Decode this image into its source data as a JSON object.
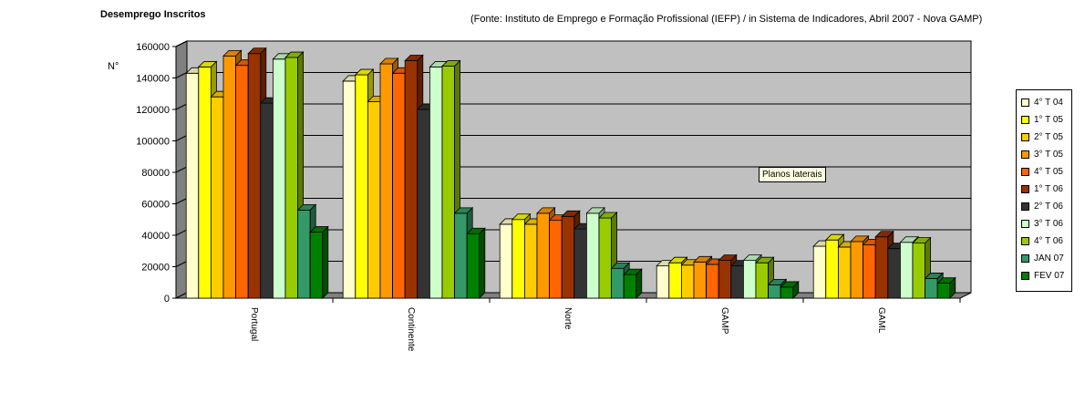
{
  "header": {
    "title": "Desemprego Inscritos",
    "source": "(Fonte: Instituto de Emprego e Formação Profissional (IEFP) / in Sistema de Indicadores, Abril 2007 - Nova GAMP)"
  },
  "tooltip": "Planos laterais",
  "colors": {
    "back_wall": "#c0c0c0",
    "floor": "#808080",
    "grid": "#000000"
  },
  "chart_data": {
    "type": "bar",
    "title": "Desemprego Inscritos",
    "ylabel": "N°",
    "xlabel": "",
    "ylim": [
      0,
      160000
    ],
    "yticks": [
      0,
      20000,
      40000,
      60000,
      80000,
      100000,
      120000,
      140000,
      160000
    ],
    "grid": true,
    "legend_position": "right",
    "categories": [
      "Portugal",
      "Continente",
      "Norte",
      "GAMP",
      "GAML"
    ],
    "series": [
      {
        "name": "4° T 04",
        "color": "#ffffcc",
        "values": [
          143000,
          138000,
          47000,
          20500,
          33000
        ]
      },
      {
        "name": "1° T 05",
        "color": "#ffff00",
        "values": [
          147000,
          142000,
          50000,
          22500,
          37000
        ]
      },
      {
        "name": "2° T 05",
        "color": "#ffcc00",
        "values": [
          128000,
          125000,
          47000,
          21000,
          32500
        ]
      },
      {
        "name": "3° T 05",
        "color": "#ff9900",
        "values": [
          154000,
          149000,
          54000,
          23000,
          36000
        ]
      },
      {
        "name": "4° T 05",
        "color": "#ff6600",
        "values": [
          148000,
          143000,
          49500,
          21500,
          34000
        ]
      },
      {
        "name": "1° T 06",
        "color": "#993300",
        "values": [
          155500,
          151000,
          52000,
          24000,
          39000
        ]
      },
      {
        "name": "2° T 06",
        "color": "#333333",
        "values": [
          124000,
          120000,
          44000,
          20500,
          31500
        ]
      },
      {
        "name": "3° T 06",
        "color": "#ccffcc",
        "values": [
          152000,
          147000,
          54000,
          24000,
          35500
        ]
      },
      {
        "name": "4° T 06",
        "color": "#99cc00",
        "values": [
          153000,
          147500,
          51000,
          22500,
          35000
        ]
      },
      {
        "name": "JAN 07",
        "color": "#339966",
        "values": [
          56000,
          54000,
          19000,
          8500,
          12500
        ]
      },
      {
        "name": "FEV 07",
        "color": "#008000",
        "values": [
          42000,
          41000,
          15000,
          7000,
          9500
        ]
      }
    ]
  }
}
